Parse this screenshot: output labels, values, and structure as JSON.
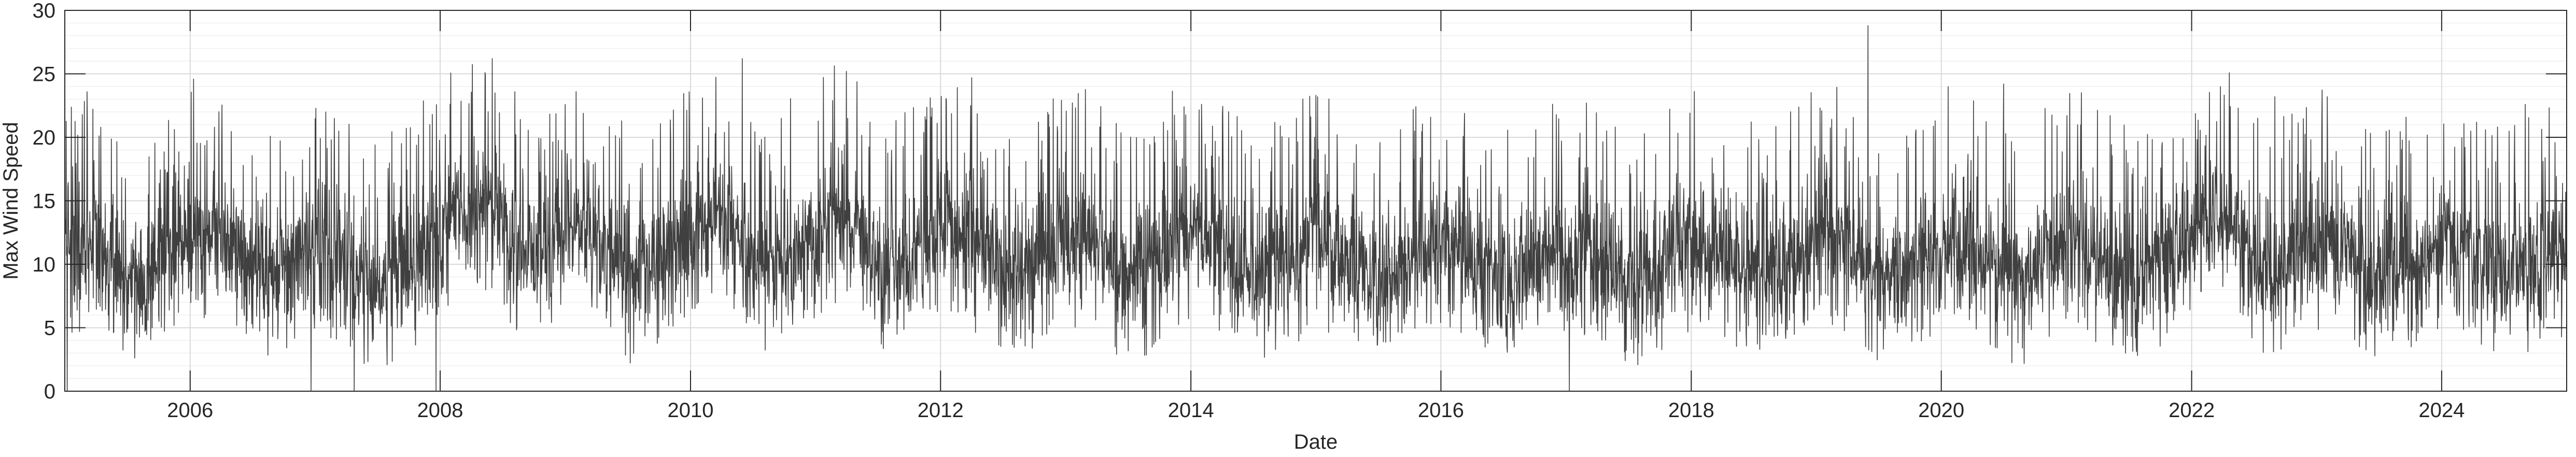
{
  "chart_data": {
    "type": "line",
    "title": "",
    "xlabel": "Date",
    "ylabel": "Max Wind Speed",
    "xlim": [
      "2004-12-31",
      "2024-12-31"
    ],
    "ylim": [
      0,
      30
    ],
    "x_ticks": [
      "2006",
      "2008",
      "2010",
      "2012",
      "2014",
      "2016",
      "2018",
      "2020",
      "2022",
      "2024"
    ],
    "y_ticks": [
      "0",
      "5",
      "10",
      "15",
      "20",
      "25",
      "30"
    ],
    "grid": true,
    "minor_grid": true,
    "box": true,
    "colors": {
      "series": "#404040",
      "grid": "#d9d9d9",
      "minor_grid": "#efefef",
      "axis": "#262626"
    },
    "series": [
      {
        "x": [
          "2005-01",
          "2005-03",
          "2005-05",
          "2005-07",
          "2005-09",
          "2005-11",
          "2006-01",
          "2006-03",
          "2006-05",
          "2006-07",
          "2006-09",
          "2006-11",
          "2007-01",
          "2007-03",
          "2007-05",
          "2007-07",
          "2007-09",
          "2007-11",
          "2008-01",
          "2008-03",
          "2008-05",
          "2008-07",
          "2008-09",
          "2008-11",
          "2009-01",
          "2009-03",
          "2009-05",
          "2009-07",
          "2009-09",
          "2009-11",
          "2010-01",
          "2010-03",
          "2010-05",
          "2010-07",
          "2010-09",
          "2010-11",
          "2011-01",
          "2011-03",
          "2011-05",
          "2011-07",
          "2011-09",
          "2011-11",
          "2012-01",
          "2012-03",
          "2012-05",
          "2012-07",
          "2012-09",
          "2012-11",
          "2013-01",
          "2013-03",
          "2013-05",
          "2013-07",
          "2013-09",
          "2013-11",
          "2014-01",
          "2014-03",
          "2014-05",
          "2014-07",
          "2014-09",
          "2014-11",
          "2015-01",
          "2015-03",
          "2015-05",
          "2015-07",
          "2015-09",
          "2015-11",
          "2016-01",
          "2016-03",
          "2016-05",
          "2016-07",
          "2016-09",
          "2016-11",
          "2017-01",
          "2017-03",
          "2017-05",
          "2017-07",
          "2017-09",
          "2017-11",
          "2018-01",
          "2018-03",
          "2018-05",
          "2018-07",
          "2018-09",
          "2018-11",
          "2019-01",
          "2019-03",
          "2019-05",
          "2019-07",
          "2019-09",
          "2019-11",
          "2020-01",
          "2020-03",
          "2020-05",
          "2020-07",
          "2020-09",
          "2020-11",
          "2021-01",
          "2021-03",
          "2021-05",
          "2021-07",
          "2021-09",
          "2021-11",
          "2022-01",
          "2022-03",
          "2022-05",
          "2022-07",
          "2022-09",
          "2022-11",
          "2023-01",
          "2023-03",
          "2023-05",
          "2023-07",
          "2023-09",
          "2023-11",
          "2024-01",
          "2024-03",
          "2024-05",
          "2024-07",
          "2024-09",
          "2024-11"
        ],
        "y": [
          11,
          12,
          10,
          9,
          10,
          12,
          13,
          12,
          11,
          9,
          10,
          11,
          11,
          10,
          9,
          8,
          10,
          11,
          13,
          14,
          15,
          12,
          11,
          12,
          14,
          13,
          11,
          9,
          10,
          12,
          13,
          14,
          12,
          10,
          10,
          12,
          13,
          14,
          12,
          10,
          10,
          12,
          13,
          12,
          11,
          9,
          10,
          11,
          12,
          12,
          10,
          9,
          10,
          12,
          13,
          12,
          10,
          9,
          10,
          11,
          12,
          11,
          10,
          9,
          10,
          11,
          12,
          11,
          10,
          9,
          10,
          11,
          11,
          11,
          10,
          9,
          9,
          11,
          12,
          11,
          10,
          9,
          10,
          11,
          12,
          12,
          10,
          9,
          10,
          11,
          12,
          12,
          10,
          9,
          9,
          11,
          12,
          11,
          10,
          9,
          10,
          11,
          13,
          14,
          13,
          10,
          10,
          11,
          12,
          12,
          10,
          9,
          10,
          11,
          12,
          11,
          10,
          9,
          10,
          11
        ]
      }
    ],
    "visible_extremes": [
      {
        "x": "2019-06-01",
        "y": 28.8
      },
      {
        "x": "2008-06-01",
        "y": 26.2
      },
      {
        "x": "2010-06-01",
        "y": 26.2
      },
      {
        "x": "2011-04-01",
        "y": 25.2
      },
      {
        "x": "2012-04-01",
        "y": 24.7
      },
      {
        "x": "2020-07-01",
        "y": 24.2
      },
      {
        "x": "2009-02-01",
        "y": 23.6
      },
      {
        "x": "2023-02-01",
        "y": 23.2
      },
      {
        "x": "2022-09-01",
        "y": 23.2
      },
      {
        "x": "2014-02-01",
        "y": 22.6
      },
      {
        "x": "2024-09-01",
        "y": 22.6
      },
      {
        "x": "2007-02-01",
        "y": 22.0
      },
      {
        "x": "2005-01-07",
        "y": 0.0
      },
      {
        "x": "2006-12-20",
        "y": 0.0
      },
      {
        "x": "2007-04-25",
        "y": 0.0
      },
      {
        "x": "2007-12-20",
        "y": 0.0
      },
      {
        "x": "2017-01-10",
        "y": 0.0
      }
    ]
  }
}
